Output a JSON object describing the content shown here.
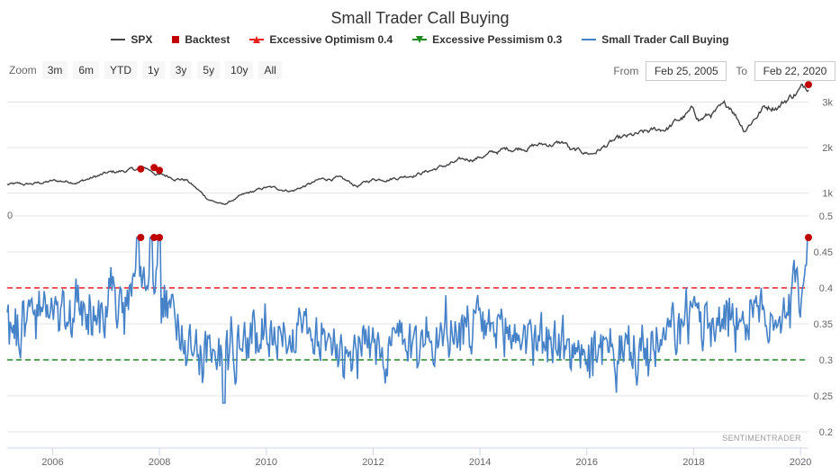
{
  "title": "Small Trader Call Buying",
  "legend": [
    {
      "label": "SPX",
      "symbol": "line",
      "color": "#434348"
    },
    {
      "label": "Backtest",
      "symbol": "square",
      "color": "#c00000"
    },
    {
      "label": "Excessive Optimism 0.4",
      "symbol": "triangle-up",
      "color": "#e8201b"
    },
    {
      "label": "Excessive Pessimism 0.3",
      "symbol": "triangle-down",
      "color": "#1f8a1f"
    },
    {
      "label": "Small Trader Call Buying",
      "symbol": "line",
      "color": "#4682c8"
    }
  ],
  "toolbar": {
    "zoom_label": "Zoom",
    "buttons": [
      "3m",
      "6m",
      "YTD",
      "1y",
      "3y",
      "5y",
      "10y",
      "All"
    ],
    "from_label": "From",
    "from_value": "Feb 25, 2005",
    "to_label": "To",
    "to_value": "Feb 22, 2020"
  },
  "credit": "SENTIMENTRADER",
  "chart_data": [
    {
      "type": "line",
      "name": "SPX",
      "xrange": [
        2005.15,
        2020.15
      ],
      "ylim": [
        500,
        3500
      ],
      "yticks": [
        1000,
        2000,
        3000
      ],
      "ytick_labels": [
        "1k",
        "2k",
        "3k"
      ],
      "anchors": [
        [
          2005.15,
          1190
        ],
        [
          2005.5,
          1180
        ],
        [
          2006.0,
          1260
        ],
        [
          2006.5,
          1260
        ],
        [
          2007.0,
          1420
        ],
        [
          2007.3,
          1480
        ],
        [
          2007.75,
          1540
        ],
        [
          2008.0,
          1400
        ],
        [
          2008.5,
          1300
        ],
        [
          2008.9,
          880
        ],
        [
          2009.2,
          740
        ],
        [
          2009.5,
          920
        ],
        [
          2010.0,
          1120
        ],
        [
          2010.5,
          1060
        ],
        [
          2011.0,
          1280
        ],
        [
          2011.3,
          1340
        ],
        [
          2011.7,
          1150
        ],
        [
          2012.0,
          1300
        ],
        [
          2012.5,
          1360
        ],
        [
          2013.0,
          1480
        ],
        [
          2013.5,
          1650
        ],
        [
          2014.0,
          1800
        ],
        [
          2014.5,
          1960
        ],
        [
          2015.0,
          2050
        ],
        [
          2015.6,
          2100
        ],
        [
          2015.7,
          1920
        ],
        [
          2016.1,
          1870
        ],
        [
          2016.5,
          2130
        ],
        [
          2017.0,
          2270
        ],
        [
          2017.5,
          2430
        ],
        [
          2018.0,
          2800
        ],
        [
          2018.1,
          2620
        ],
        [
          2018.7,
          2900
        ],
        [
          2018.95,
          2420
        ],
        [
          2019.3,
          2880
        ],
        [
          2019.6,
          2950
        ],
        [
          2019.9,
          3200
        ],
        [
          2020.15,
          3380
        ]
      ],
      "backtest_points": [
        [
          2007.65,
          1530
        ],
        [
          2007.9,
          1560
        ],
        [
          2008.0,
          1500
        ],
        [
          2020.15,
          3380
        ]
      ]
    },
    {
      "type": "line",
      "name": "Small Trader Call Buying",
      "xrange": [
        2005.15,
        2020.15
      ],
      "ylim": [
        0.18,
        0.5
      ],
      "yticks": [
        0.2,
        0.25,
        0.3,
        0.35,
        0.4,
        0.45,
        0.5
      ],
      "ytick_labels": [
        "0.2",
        "0.25",
        "0.3",
        "0.35",
        "0.4",
        "0.45",
        "0.5"
      ],
      "thresholds": [
        {
          "name": "Excessive Optimism",
          "value": 0.4,
          "color": "#e8201b"
        },
        {
          "name": "Excessive Pessimism",
          "value": 0.3,
          "color": "#1f8a1f"
        }
      ],
      "baseline_anchors": [
        [
          2005.15,
          0.35
        ],
        [
          2006.0,
          0.365
        ],
        [
          2007.0,
          0.37
        ],
        [
          2007.7,
          0.39
        ],
        [
          2008.0,
          0.38
        ],
        [
          2008.6,
          0.33
        ],
        [
          2009.0,
          0.3
        ],
        [
          2009.5,
          0.325
        ],
        [
          2010.0,
          0.34
        ],
        [
          2011.0,
          0.335
        ],
        [
          2012.0,
          0.315
        ],
        [
          2013.0,
          0.33
        ],
        [
          2014.0,
          0.34
        ],
        [
          2015.0,
          0.335
        ],
        [
          2015.8,
          0.31
        ],
        [
          2016.5,
          0.305
        ],
        [
          2017.3,
          0.31
        ],
        [
          2017.8,
          0.35
        ],
        [
          2018.5,
          0.365
        ],
        [
          2019.0,
          0.355
        ],
        [
          2019.7,
          0.37
        ],
        [
          2020.0,
          0.4
        ],
        [
          2020.15,
          0.47
        ]
      ],
      "noise_amplitude": 0.035,
      "spikes": [
        [
          2007.6,
          0.47
        ],
        [
          2007.85,
          0.47
        ],
        [
          2008.0,
          0.47
        ],
        [
          2009.2,
          0.24
        ],
        [
          2020.15,
          0.47
        ]
      ],
      "backtest_points": [
        [
          2007.65,
          0.47
        ],
        [
          2007.9,
          0.47
        ],
        [
          2008.0,
          0.47
        ],
        [
          2020.15,
          0.47
        ]
      ]
    }
  ],
  "x_axis": {
    "ticks": [
      2006,
      2008,
      2010,
      2012,
      2014,
      2016,
      2018,
      2020
    ],
    "labels": [
      "2006",
      "2008",
      "2010",
      "2012",
      "2014",
      "2016",
      "2018",
      "2020"
    ]
  }
}
